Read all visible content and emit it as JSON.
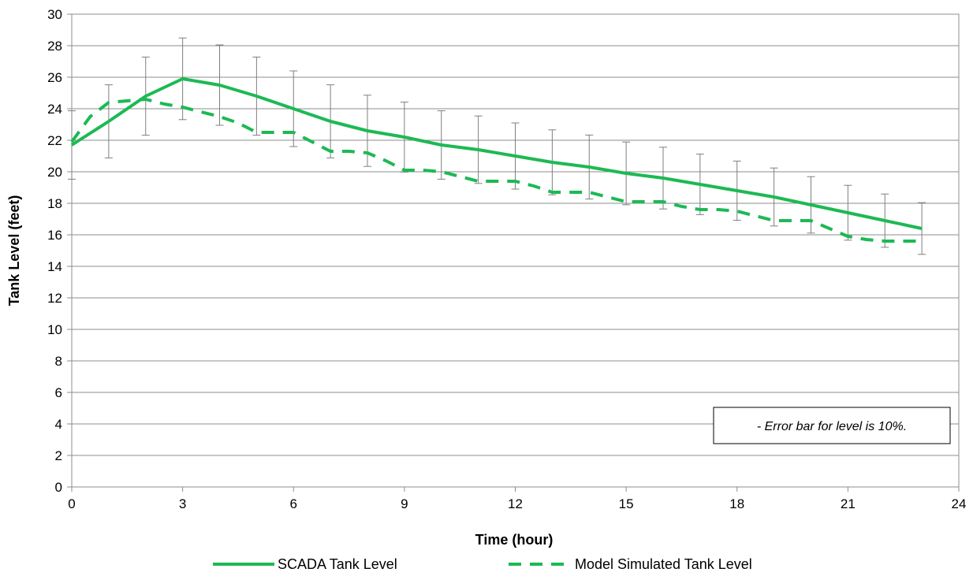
{
  "chart_data": {
    "type": "line",
    "xlabel": "Time (hour)",
    "ylabel": "Tank Level (feet)",
    "xlim": [
      0,
      24
    ],
    "ylim": [
      0,
      30
    ],
    "xticks": [
      0,
      3,
      6,
      9,
      12,
      15,
      18,
      21,
      24
    ],
    "yticks": [
      0,
      2,
      4,
      6,
      8,
      10,
      12,
      14,
      16,
      18,
      20,
      22,
      24,
      26,
      28,
      30
    ],
    "grid": true,
    "legend_position": "bottom",
    "note": "- Error bar for level is 10%.",
    "error_bar_percent": 10,
    "series": [
      {
        "name": "SCADA Tank Level",
        "style": "solid",
        "color": "#1db954",
        "x": [
          0,
          1,
          2,
          3,
          4,
          5,
          6,
          7,
          8,
          9,
          10,
          11,
          12,
          13,
          14,
          15,
          16,
          17,
          18,
          19,
          20,
          21,
          22,
          23
        ],
        "y": [
          21.7,
          23.2,
          24.8,
          25.9,
          25.5,
          24.8,
          24.0,
          23.2,
          22.6,
          22.2,
          21.7,
          21.4,
          21.0,
          20.6,
          20.3,
          19.9,
          19.6,
          19.2,
          18.8,
          18.4,
          17.9,
          17.4,
          16.9,
          16.4
        ]
      },
      {
        "name": "Model Simulated Tank Level",
        "style": "dashed",
        "color": "#1db954",
        "x": [
          0,
          0.5,
          1,
          1.5,
          2,
          2.5,
          3,
          3.5,
          4,
          4.5,
          5,
          5.5,
          6,
          6.5,
          7,
          7.5,
          8,
          8.5,
          9,
          9.5,
          10,
          10.5,
          11,
          11.5,
          12,
          12.5,
          13,
          13.5,
          14,
          14.5,
          15,
          15.5,
          16,
          16.5,
          17,
          17.5,
          18,
          18.5,
          19,
          19.5,
          20,
          20.5,
          21,
          21.5,
          22,
          22.5,
          23
        ],
        "y": [
          21.9,
          23.5,
          24.4,
          24.5,
          24.6,
          24.3,
          24.1,
          23.8,
          23.5,
          23.1,
          22.5,
          22.5,
          22.5,
          21.9,
          21.3,
          21.3,
          21.2,
          20.7,
          20.1,
          20.1,
          20.0,
          19.7,
          19.4,
          19.4,
          19.4,
          19.1,
          18.7,
          18.7,
          18.7,
          18.4,
          18.1,
          18.1,
          18.1,
          17.8,
          17.6,
          17.6,
          17.5,
          17.2,
          16.9,
          16.9,
          16.9,
          16.4,
          15.9,
          15.7,
          15.6,
          15.6,
          15.6
        ]
      }
    ]
  }
}
